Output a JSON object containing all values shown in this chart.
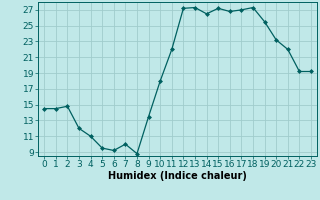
{
  "x": [
    0,
    1,
    2,
    3,
    4,
    5,
    6,
    7,
    8,
    9,
    10,
    11,
    12,
    13,
    14,
    15,
    16,
    17,
    18,
    19,
    20,
    21,
    22,
    23
  ],
  "y": [
    14.5,
    14.5,
    14.8,
    12.0,
    11.0,
    9.5,
    9.2,
    10.0,
    8.8,
    13.5,
    18.0,
    22.0,
    27.2,
    27.3,
    26.5,
    27.2,
    26.8,
    27.0,
    27.3,
    25.5,
    23.2,
    22.0,
    19.2,
    19.2
  ],
  "line_color": "#006060",
  "marker": "D",
  "marker_size": 2.0,
  "bg_color": "#c0e8e8",
  "grid_color": "#a0cccc",
  "xlabel": "Humidex (Indice chaleur)",
  "xlim": [
    -0.5,
    23.5
  ],
  "ylim": [
    8.5,
    28
  ],
  "yticks": [
    9,
    11,
    13,
    15,
    17,
    19,
    21,
    23,
    25,
    27
  ],
  "xtick_labels": [
    "0",
    "1",
    "2",
    "3",
    "4",
    "5",
    "6",
    "7",
    "8",
    "9",
    "10",
    "11",
    "12",
    "13",
    "14",
    "15",
    "16",
    "17",
    "18",
    "19",
    "20",
    "21",
    "22",
    "23"
  ],
  "xlabel_fontsize": 7,
  "tick_fontsize": 6.5
}
